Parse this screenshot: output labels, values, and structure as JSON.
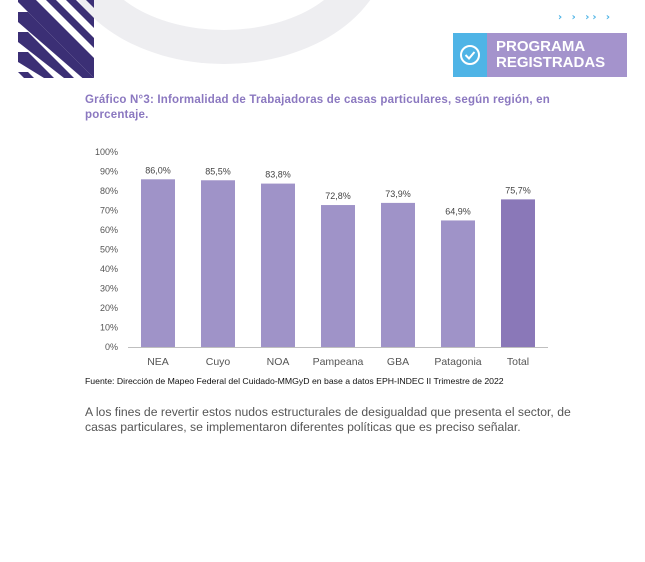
{
  "header": {
    "badge_line1": "PROGRAMA",
    "badge_line2": "REGISTRADAS",
    "badge_icon": "check-circle-icon",
    "arrows": "› › ›› ›",
    "colors": {
      "badge": "#a493cc",
      "badge_icon_bg": "#4fb4e6",
      "stripes": "#3b2f75"
    }
  },
  "chart_title": "Gráfico N°3: Informalidad de Trabajadoras de casas particulares, según región, en porcentaje.",
  "chart_data": {
    "type": "bar",
    "title": "Gráfico N°3: Informalidad de Trabajadoras de casas particulares, según región, en porcentaje.",
    "categories": [
      "NEA",
      "Cuyo",
      "NOA",
      "Pampeana",
      "GBA",
      "Patagonia",
      "Total"
    ],
    "values": [
      86.0,
      85.5,
      83.8,
      72.8,
      73.9,
      64.9,
      75.7
    ],
    "value_labels": [
      "86,0%",
      "85,5%",
      "83,8%",
      "72,8%",
      "73,9%",
      "64,9%",
      "75,7%"
    ],
    "yticks": [
      0,
      10,
      20,
      30,
      40,
      50,
      60,
      70,
      80,
      90,
      100
    ],
    "ytick_labels": [
      "0%",
      "10%",
      "20%",
      "30%",
      "40%",
      "50%",
      "60%",
      "70%",
      "80%",
      "90%",
      "100%"
    ],
    "ylim": [
      0,
      100
    ],
    "xlabel": "",
    "ylabel": "",
    "grid": false,
    "colors": {
      "bar": "#9f93c8",
      "total": "#8a78b8"
    }
  },
  "source": "Fuente: Dirección de Mapeo Federal del Cuidado-MMGyD en base a datos EPH-INDEC II Trimestre de 2022",
  "body_text": "A los fines de revertir estos nudos estructurales de desigualdad que presenta el sector, de casas particulares, se implementaron diferentes políticas que es preciso señalar."
}
